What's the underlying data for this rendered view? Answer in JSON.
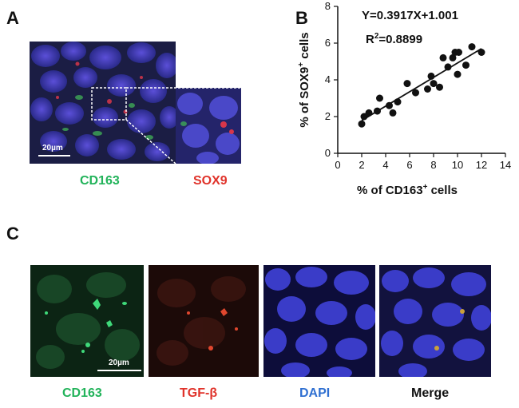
{
  "panels": {
    "a": {
      "letter": "A",
      "scalebar": "20µm",
      "stains": [
        {
          "name": "CD163",
          "color": "#22b35a"
        },
        {
          "name": "SOX9",
          "color": "#e0332b"
        }
      ]
    },
    "b": {
      "letter": "B"
    },
    "c": {
      "letter": "C",
      "scalebar": "20µm",
      "stains": [
        {
          "name": "CD163",
          "color": "#22b35a"
        },
        {
          "name": "TGF-β",
          "color": "#e0332b"
        },
        {
          "name": "DAPI",
          "color": "#2f6fd1"
        },
        {
          "name": "Merge",
          "color": "#111111"
        }
      ]
    }
  },
  "chart_data": {
    "type": "scatter",
    "xlabel_main": "% of CD163",
    "xlabel_sup": "+",
    "xlabel_tail": " cells",
    "ylabel_main": "% of SOX9",
    "ylabel_sup": "+",
    "ylabel_tail": " cells",
    "equation": "Y=0.3917X+1.001",
    "r2_prefix": "R",
    "r2_sup": "2",
    "r2_value": "=0.8899",
    "xlim": [
      0,
      14
    ],
    "ylim": [
      0,
      8
    ],
    "xticks": [
      0,
      2,
      4,
      6,
      8,
      10,
      12,
      14
    ],
    "yticks": [
      0,
      2,
      4,
      6,
      8
    ],
    "fit": {
      "slope": 0.3917,
      "intercept": 1.001,
      "x_range": [
        2,
        12
      ]
    },
    "points": [
      [
        2.0,
        1.6
      ],
      [
        2.2,
        2.0
      ],
      [
        2.6,
        2.2
      ],
      [
        3.3,
        2.3
      ],
      [
        3.5,
        3.0
      ],
      [
        4.3,
        2.6
      ],
      [
        4.6,
        2.2
      ],
      [
        5.0,
        2.8
      ],
      [
        5.8,
        3.8
      ],
      [
        6.5,
        3.3
      ],
      [
        7.5,
        3.5
      ],
      [
        7.8,
        4.2
      ],
      [
        8.0,
        3.8
      ],
      [
        8.5,
        3.6
      ],
      [
        8.8,
        5.2
      ],
      [
        9.2,
        4.7
      ],
      [
        9.6,
        5.2
      ],
      [
        9.8,
        5.5
      ],
      [
        10.0,
        4.3
      ],
      [
        10.1,
        5.5
      ],
      [
        10.7,
        4.8
      ],
      [
        11.2,
        5.8
      ],
      [
        12.0,
        5.5
      ]
    ]
  }
}
